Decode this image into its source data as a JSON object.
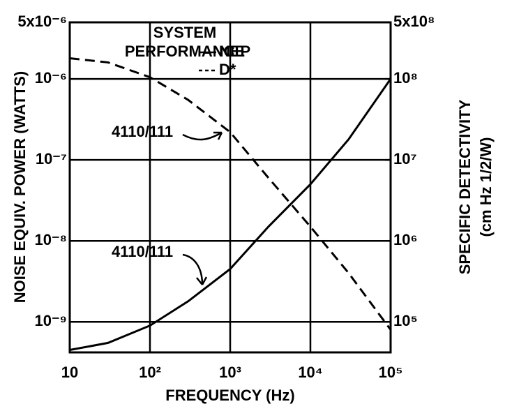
{
  "chart_data": {
    "type": "line",
    "title_lines": [
      "SYSTEM",
      "PERFORMANCE"
    ],
    "x_label": "FREQUENCY (Hz)",
    "y_label": "NOISE EQUIV. POWER (WATTS)",
    "y2_label_lines": [
      "SPECIFIC DETECTIVITY",
      "(cm Hz 1/2/W)"
    ],
    "annotations": [
      "4110/111",
      "4110/111"
    ],
    "x": [
      10,
      30,
      100,
      300,
      1000,
      3000,
      10000,
      30000,
      100000
    ],
    "series": [
      {
        "name": "NEP",
        "color": "#000000",
        "dash": false,
        "values": [
          4.5e-10,
          5.5e-10,
          9e-10,
          1.8e-09,
          4.5e-09,
          1.5e-08,
          5e-08,
          1.8e-07,
          1e-06
        ]
      },
      {
        "name": "D*",
        "color": "#000000",
        "dash": true,
        "axis": "y2",
        "values": [
          180000000,
          160000000,
          105000000,
          55000000,
          22000000,
          6000000,
          1500000,
          400000,
          80000
        ]
      }
    ],
    "xscale": "log",
    "yscale": "log",
    "grid": true,
    "xlim": [
      10,
      100000
    ],
    "xticks": [
      {
        "value": 10,
        "label": "10"
      },
      {
        "value": 100,
        "label": "10²"
      },
      {
        "value": 1000,
        "label": "10³"
      },
      {
        "value": 10000,
        "label": "10⁴"
      },
      {
        "value": 100000,
        "label": "10⁵"
      }
    ],
    "ylim": [
      4.2e-10,
      5e-06
    ],
    "yticks": [
      {
        "value": 5e-06,
        "label": "5x10⁻⁶"
      },
      {
        "value": 1e-06,
        "label": "10⁻⁶"
      },
      {
        "value": 1e-07,
        "label": "10⁻⁷"
      },
      {
        "value": 1e-08,
        "label": "10⁻⁸"
      },
      {
        "value": 1e-09,
        "label": "10⁻⁹"
      }
    ],
    "y2lim": [
      42000,
      500000000
    ],
    "y2ticks": [
      {
        "value": 500000000,
        "label": "5x10⁸"
      },
      {
        "value": 100000000,
        "label": "10⁸"
      },
      {
        "value": 10000000,
        "label": "10⁷"
      },
      {
        "value": 1000000,
        "label": "10⁶"
      },
      {
        "value": 100000,
        "label": "10⁵"
      }
    ]
  }
}
